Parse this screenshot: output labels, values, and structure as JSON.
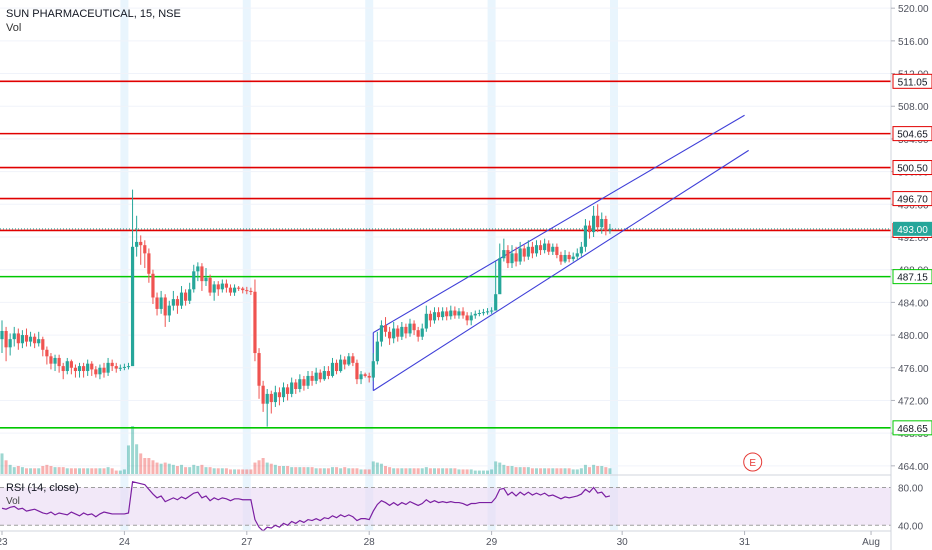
{
  "header": {
    "title": "SUN PHARMACEUTICAL, 15, NSE",
    "vol_label": "Vol"
  },
  "rsi_pane": {
    "label": "RSI (14, close)",
    "vol_label": "Vol",
    "ticks": [
      "80.00",
      "40.00"
    ]
  },
  "event_marker": "E",
  "colors": {
    "up": "#26a69a",
    "down": "#ef5350",
    "resistance": "#e00000",
    "support": "#00c800",
    "channel": "#3f3fd8",
    "rsi": "#7b1fa2",
    "rsi_band": "#ead8f3"
  },
  "chart_data": {
    "type": "candlestick",
    "title": "SUN PHARMACEUTICAL, 15, NSE",
    "interval": "15",
    "exchange": "NSE",
    "y_ticks": [
      464,
      468,
      472,
      476,
      480,
      484,
      488,
      492,
      496,
      500,
      504,
      508,
      512,
      516,
      520
    ],
    "y_tick_labels": [
      "464.00",
      "468.00",
      "472.00",
      "476.00",
      "480.00",
      "484.00",
      "488.00",
      "492.00",
      "496.00",
      "500.00",
      "504.00",
      "508.00",
      "512.00",
      "516.00",
      "520.00"
    ],
    "ylim": [
      463.0,
      521.0
    ],
    "x_ticks": [
      {
        "label": "23",
        "pos": 0
      },
      {
        "label": "24",
        "pos": 30
      },
      {
        "label": "27",
        "pos": 60
      },
      {
        "label": "28",
        "pos": 90
      },
      {
        "label": "29",
        "pos": 120
      },
      {
        "label": "30",
        "pos": 152
      },
      {
        "label": "31",
        "pos": 182
      },
      {
        "label": "Aug",
        "pos": 213
      }
    ],
    "x_range": [
      0,
      227
    ],
    "horizontal_levels": [
      {
        "value": 511.05,
        "label": "511.05",
        "kind": "resistance"
      },
      {
        "value": 504.65,
        "label": "504.65",
        "kind": "resistance"
      },
      {
        "value": 500.5,
        "label": "500.50",
        "kind": "resistance"
      },
      {
        "value": 496.7,
        "label": "496.70",
        "kind": "resistance"
      },
      {
        "value": 492.8,
        "label": "492.80",
        "kind": "resistance"
      },
      {
        "value": 487.15,
        "label": "487.15",
        "kind": "support"
      },
      {
        "value": 468.65,
        "label": "468.65",
        "kind": "support"
      }
    ],
    "last_price": {
      "value": 493.0,
      "label": "493.00"
    },
    "channel": [
      {
        "from": [
          91,
          473.2
        ],
        "to": [
          183,
          502.6
        ]
      },
      {
        "from": [
          91,
          480.3
        ],
        "to": [
          182,
          506.9
        ]
      }
    ],
    "rsi_levels": [
      80,
      40
    ],
    "rsi_range": [
      35,
      90
    ],
    "candles": [
      [
        0,
        479.5,
        480.5,
        481.8,
        477.8,
        18
      ],
      [
        1,
        480.5,
        478.5,
        481.0,
        476.8,
        12
      ],
      [
        2,
        478.5,
        479.5,
        480.2,
        477.5,
        8
      ],
      [
        3,
        479.5,
        480.2,
        481.0,
        478.6,
        6
      ],
      [
        4,
        480.2,
        479.0,
        480.8,
        478.2,
        7
      ],
      [
        5,
        479.0,
        480.0,
        480.6,
        478.4,
        6
      ],
      [
        6,
        480.0,
        479.2,
        480.8,
        478.6,
        5
      ],
      [
        7,
        479.2,
        479.8,
        480.4,
        478.6,
        5
      ],
      [
        8,
        479.8,
        479.0,
        480.2,
        478.4,
        5
      ],
      [
        9,
        479.0,
        479.5,
        480.4,
        478.6,
        5
      ],
      [
        10,
        479.5,
        478.2,
        479.8,
        477.4,
        7
      ],
      [
        11,
        478.2,
        477.4,
        478.6,
        476.4,
        8
      ],
      [
        12,
        477.4,
        476.5,
        477.8,
        475.8,
        7
      ],
      [
        13,
        476.5,
        477.2,
        477.6,
        475.6,
        6
      ],
      [
        14,
        477.2,
        476.2,
        477.6,
        475.4,
        6
      ],
      [
        15,
        476.2,
        475.6,
        476.6,
        474.6,
        6
      ],
      [
        16,
        475.6,
        476.8,
        477.2,
        475.2,
        5
      ],
      [
        17,
        476.8,
        476.0,
        477.0,
        475.2,
        5
      ],
      [
        18,
        476.0,
        475.6,
        476.4,
        474.8,
        5
      ],
      [
        19,
        475.6,
        476.2,
        476.6,
        474.8,
        5
      ],
      [
        20,
        476.2,
        475.6,
        476.6,
        474.8,
        5
      ],
      [
        21,
        475.6,
        476.5,
        477.0,
        475.0,
        5
      ],
      [
        22,
        476.5,
        475.8,
        476.8,
        475.0,
        5
      ],
      [
        23,
        475.8,
        475.2,
        476.2,
        474.8,
        5
      ],
      [
        24,
        475.2,
        476.0,
        476.4,
        474.6,
        5
      ],
      [
        25,
        476.0,
        475.4,
        476.6,
        474.8,
        5
      ],
      [
        26,
        475.4,
        476.6,
        477.2,
        475.0,
        6
      ],
      [
        27,
        476.6,
        476.2,
        477.0,
        475.6,
        5
      ],
      [
        28,
        476.2,
        475.9,
        476.6,
        475.4,
        3
      ],
      [
        29,
        475.9,
        476.0,
        476.4,
        475.6,
        3
      ],
      [
        30,
        476.0,
        476.1,
        476.5,
        475.7,
        4
      ],
      [
        31,
        476.1,
        476.2,
        476.6,
        475.8,
        25
      ],
      [
        32,
        476.2,
        490.8,
        497.8,
        489.0,
        42
      ],
      [
        33,
        490.8,
        491.4,
        494.6,
        489.6,
        26
      ],
      [
        34,
        491.4,
        491.0,
        492.2,
        488.6,
        18
      ],
      [
        35,
        491.0,
        490.0,
        491.6,
        488.2,
        14
      ],
      [
        36,
        490.0,
        487.5,
        490.6,
        486.4,
        14
      ],
      [
        37,
        487.5,
        484.6,
        488.0,
        483.8,
        12
      ],
      [
        38,
        484.6,
        483.2,
        485.2,
        482.4,
        10
      ],
      [
        39,
        483.2,
        484.6,
        485.4,
        482.6,
        9
      ],
      [
        40,
        484.6,
        482.4,
        485.0,
        481.0,
        10
      ],
      [
        41,
        482.4,
        483.6,
        484.2,
        481.6,
        9
      ],
      [
        42,
        483.6,
        484.4,
        485.4,
        483.0,
        8
      ],
      [
        43,
        484.4,
        483.6,
        484.8,
        482.6,
        7
      ],
      [
        44,
        483.6,
        485.2,
        486.0,
        483.2,
        8
      ],
      [
        45,
        485.2,
        484.2,
        485.6,
        483.6,
        6
      ],
      [
        46,
        484.2,
        485.6,
        486.4,
        483.8,
        6
      ],
      [
        47,
        485.6,
        487.8,
        488.6,
        485.2,
        8
      ],
      [
        48,
        487.8,
        488.4,
        488.9,
        486.6,
        7
      ],
      [
        49,
        488.4,
        486.6,
        488.8,
        485.4,
        8
      ],
      [
        50,
        486.6,
        487.0,
        488.2,
        486.0,
        6
      ],
      [
        51,
        487.0,
        485.2,
        487.4,
        484.8,
        6
      ],
      [
        52,
        485.2,
        486.2,
        486.6,
        484.2,
        5
      ],
      [
        53,
        486.2,
        485.6,
        486.6,
        484.8,
        5
      ],
      [
        54,
        485.6,
        486.3,
        486.8,
        485.2,
        5
      ],
      [
        55,
        486.3,
        485.8,
        486.8,
        485.2,
        5
      ],
      [
        56,
        485.8,
        485.2,
        486.2,
        484.8,
        4
      ],
      [
        57,
        485.2,
        485.8,
        486.2,
        484.8,
        4
      ],
      [
        58,
        485.8,
        485.7,
        486.0,
        485.4,
        4
      ],
      [
        59,
        485.7,
        485.5,
        485.9,
        485.1,
        4
      ],
      [
        60,
        485.5,
        485.4,
        485.9,
        485.0,
        4
      ],
      [
        61,
        485.4,
        485.3,
        485.8,
        484.9,
        4
      ],
      [
        62,
        485.3,
        477.8,
        486.8,
        476.8,
        10
      ],
      [
        63,
        477.8,
        473.8,
        478.4,
        472.2,
        12
      ],
      [
        64,
        473.8,
        471.6,
        474.4,
        470.6,
        14
      ],
      [
        65,
        471.6,
        472.8,
        473.4,
        468.8,
        10
      ],
      [
        66,
        472.8,
        471.8,
        473.2,
        470.4,
        9
      ],
      [
        67,
        471.8,
        473.0,
        473.8,
        471.2,
        8
      ],
      [
        68,
        473.0,
        472.4,
        473.6,
        471.4,
        7
      ],
      [
        69,
        472.4,
        473.6,
        474.2,
        471.8,
        7
      ],
      [
        70,
        473.6,
        472.8,
        474.0,
        472.0,
        7
      ],
      [
        71,
        472.8,
        474.2,
        474.8,
        472.4,
        6
      ],
      [
        72,
        474.2,
        473.4,
        474.6,
        472.8,
        6
      ],
      [
        73,
        473.4,
        474.6,
        475.2,
        473.0,
        6
      ],
      [
        74,
        474.6,
        473.8,
        475.0,
        473.2,
        6
      ],
      [
        75,
        473.8,
        475.0,
        475.6,
        473.4,
        6
      ],
      [
        76,
        475.0,
        474.4,
        475.6,
        473.8,
        6
      ],
      [
        77,
        474.4,
        475.4,
        476.0,
        474.0,
        5
      ],
      [
        78,
        475.4,
        474.6,
        475.8,
        474.2,
        5
      ],
      [
        79,
        474.6,
        475.6,
        476.2,
        474.4,
        5
      ],
      [
        80,
        475.6,
        475.0,
        476.2,
        474.6,
        5
      ],
      [
        81,
        475.0,
        476.6,
        477.2,
        474.8,
        6
      ],
      [
        82,
        476.6,
        475.6,
        477.0,
        475.2,
        6
      ],
      [
        83,
        475.6,
        477.0,
        477.6,
        475.4,
        5
      ],
      [
        84,
        477.0,
        476.4,
        477.4,
        475.8,
        6
      ],
      [
        85,
        476.4,
        477.4,
        477.8,
        476.2,
        5
      ],
      [
        86,
        477.4,
        476.6,
        477.8,
        476.2,
        5
      ],
      [
        87,
        476.6,
        474.6,
        477.0,
        474.0,
        5
      ],
      [
        88,
        474.6,
        475.2,
        475.6,
        474.0,
        4
      ],
      [
        89,
        475.2,
        475.0,
        475.4,
        474.8,
        4
      ],
      [
        90,
        475.0,
        474.8,
        475.4,
        474.2,
        4
      ],
      [
        91,
        474.8,
        476.8,
        477.8,
        474.4,
        11
      ],
      [
        92,
        476.8,
        479.2,
        480.4,
        476.4,
        10
      ],
      [
        93,
        479.2,
        481.2,
        481.8,
        478.6,
        9
      ],
      [
        94,
        481.2,
        480.4,
        482.2,
        479.8,
        7
      ],
      [
        95,
        480.4,
        479.6,
        481.0,
        478.8,
        6
      ],
      [
        96,
        479.6,
        480.8,
        481.6,
        479.0,
        5
      ],
      [
        97,
        480.8,
        479.8,
        481.2,
        479.2,
        5
      ],
      [
        98,
        479.8,
        481.0,
        481.6,
        479.4,
        5
      ],
      [
        99,
        481.0,
        480.2,
        481.4,
        479.6,
        5
      ],
      [
        100,
        480.2,
        481.4,
        482.0,
        479.8,
        5
      ],
      [
        101,
        481.4,
        480.6,
        481.8,
        480.0,
        5
      ],
      [
        102,
        480.6,
        479.8,
        481.0,
        479.2,
        5
      ],
      [
        103,
        479.8,
        480.8,
        481.4,
        479.4,
        5
      ],
      [
        104,
        480.8,
        482.6,
        483.6,
        480.4,
        6
      ],
      [
        105,
        482.6,
        481.8,
        483.0,
        481.0,
        5
      ],
      [
        106,
        481.8,
        482.8,
        483.4,
        481.4,
        5
      ],
      [
        107,
        482.8,
        482.2,
        483.4,
        481.8,
        5
      ],
      [
        108,
        482.2,
        482.9,
        483.4,
        481.8,
        5
      ],
      [
        109,
        482.9,
        482.3,
        483.4,
        481.8,
        5
      ],
      [
        110,
        482.3,
        483.0,
        483.6,
        481.9,
        5
      ],
      [
        111,
        483.0,
        482.4,
        483.5,
        482.0,
        5
      ],
      [
        112,
        482.4,
        482.9,
        483.3,
        482.0,
        4
      ],
      [
        113,
        482.9,
        482.4,
        483.4,
        482.0,
        4
      ],
      [
        114,
        482.4,
        481.8,
        482.8,
        481.2,
        4
      ],
      [
        115,
        481.8,
        482.4,
        482.8,
        481.2,
        4
      ],
      [
        116,
        482.4,
        482.6,
        483.0,
        482.0,
        3
      ],
      [
        117,
        482.6,
        482.7,
        483.1,
        482.3,
        3
      ],
      [
        118,
        482.7,
        482.8,
        483.2,
        482.4,
        3
      ],
      [
        119,
        482.8,
        482.9,
        483.3,
        482.5,
        3
      ],
      [
        120,
        482.9,
        483.0,
        483.4,
        482.6,
        4
      ],
      [
        121,
        483.0,
        485.0,
        489.0,
        484.6,
        11
      ],
      [
        122,
        485.0,
        489.4,
        491.2,
        488.8,
        10
      ],
      [
        123,
        489.4,
        490.4,
        491.8,
        489.0,
        8
      ],
      [
        124,
        490.4,
        488.8,
        491.0,
        488.2,
        7
      ],
      [
        125,
        488.8,
        490.0,
        491.0,
        488.2,
        7
      ],
      [
        126,
        490.0,
        489.0,
        490.8,
        488.4,
        6
      ],
      [
        127,
        489.0,
        490.6,
        491.4,
        488.6,
        6
      ],
      [
        128,
        490.6,
        489.6,
        491.0,
        489.0,
        6
      ],
      [
        129,
        489.6,
        490.8,
        491.6,
        489.2,
        6
      ],
      [
        130,
        490.8,
        490.0,
        491.4,
        489.4,
        5
      ],
      [
        131,
        490.0,
        491.0,
        491.6,
        489.6,
        5
      ],
      [
        132,
        491.0,
        490.4,
        491.6,
        489.8,
        5
      ],
      [
        133,
        490.4,
        491.2,
        491.8,
        490.0,
        5
      ],
      [
        134,
        491.2,
        490.2,
        491.6,
        489.8,
        5
      ],
      [
        135,
        490.2,
        490.8,
        491.2,
        489.8,
        5
      ],
      [
        136,
        490.8,
        489.8,
        491.2,
        489.4,
        5
      ],
      [
        137,
        489.8,
        489.0,
        490.2,
        488.6,
        5
      ],
      [
        138,
        489.0,
        489.8,
        490.4,
        488.8,
        5
      ],
      [
        139,
        489.8,
        489.3,
        490.2,
        488.9,
        5
      ],
      [
        140,
        489.3,
        489.6,
        490.1,
        489.0,
        4
      ],
      [
        141,
        489.6,
        490.0,
        490.6,
        489.2,
        4
      ],
      [
        142,
        490.0,
        490.8,
        491.4,
        489.6,
        5
      ],
      [
        143,
        490.8,
        493.4,
        494.2,
        490.2,
        8
      ],
      [
        144,
        493.4,
        492.6,
        494.0,
        491.8,
        6
      ],
      [
        145,
        492.6,
        494.6,
        495.8,
        492.0,
        8
      ],
      [
        146,
        494.6,
        493.2,
        496.0,
        492.6,
        7
      ],
      [
        147,
        493.2,
        494.2,
        495.0,
        492.4,
        7
      ],
      [
        148,
        494.2,
        492.8,
        494.6,
        492.2,
        6
      ],
      [
        149,
        492.8,
        493.0,
        493.6,
        492.4,
        5
      ]
    ],
    "rsi_values": [
      58,
      57,
      59,
      60,
      57,
      58,
      55,
      56,
      57,
      55,
      53,
      52,
      54,
      51,
      53,
      52,
      51,
      54,
      52,
      50,
      53,
      51,
      52,
      49,
      52,
      54,
      53,
      52,
      52,
      52,
      52,
      53,
      86,
      85,
      84,
      83,
      78,
      73,
      69,
      71,
      65,
      67,
      69,
      67,
      70,
      68,
      71,
      74,
      75,
      69,
      71,
      66,
      69,
      67,
      69,
      68,
      66,
      68,
      68,
      67,
      67,
      67,
      46,
      38,
      34,
      38,
      37,
      40,
      38,
      42,
      40,
      44,
      42,
      45,
      43,
      46,
      45,
      47,
      45,
      48,
      47,
      50,
      48,
      51,
      49,
      51,
      49,
      45,
      47,
      47,
      46,
      55,
      62,
      66,
      64,
      61,
      64,
      61,
      64,
      62,
      65,
      63,
      61,
      63,
      67,
      64,
      66,
      64,
      65,
      64,
      65,
      64,
      64,
      63,
      61,
      63,
      63,
      64,
      64,
      64,
      64,
      69,
      78,
      79,
      72,
      75,
      71,
      75,
      72,
      75,
      72,
      74,
      72,
      74,
      71,
      72,
      70,
      68,
      70,
      69,
      70,
      71,
      73,
      78,
      75,
      80,
      74,
      75,
      70,
      71
    ]
  }
}
